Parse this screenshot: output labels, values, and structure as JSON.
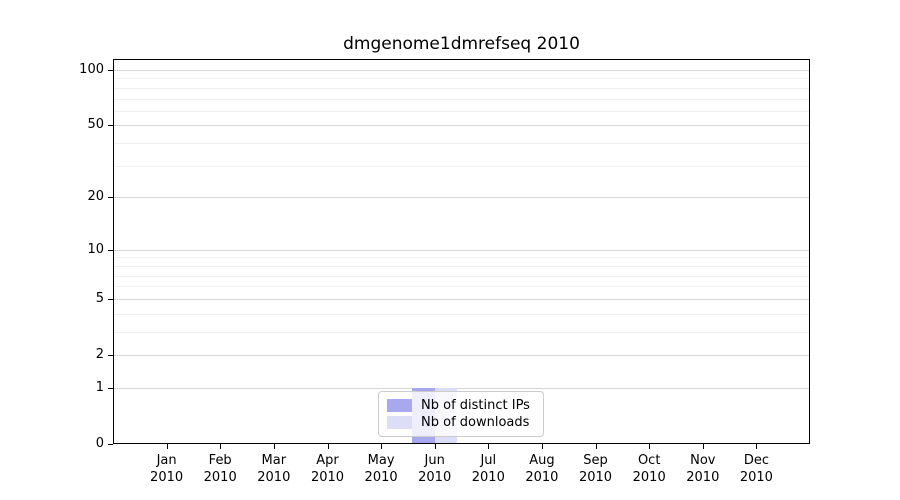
{
  "chart_data": {
    "type": "bar",
    "title": "dmgenome1dmrefseq 2010",
    "year": "2010",
    "categories": [
      "Jan",
      "Feb",
      "Mar",
      "Apr",
      "May",
      "Jun",
      "Jul",
      "Aug",
      "Sep",
      "Oct",
      "Nov",
      "Dec"
    ],
    "series": [
      {
        "name": "Nb of distinct IPs",
        "color": "#a8a8ef",
        "values": [
          0,
          0,
          0,
          0,
          0,
          1,
          0,
          0,
          0,
          0,
          0,
          0
        ]
      },
      {
        "name": "Nb of downloads",
        "color": "#dcddf7",
        "values": [
          0,
          0,
          0,
          0,
          0,
          1,
          0,
          0,
          0,
          0,
          0,
          0
        ]
      }
    ],
    "y_axis": {
      "scale": "log1p",
      "min": 0,
      "max": 100,
      "ticks": [
        0,
        1,
        2,
        5,
        10,
        20,
        50,
        100
      ],
      "minor_ticks": [
        3,
        4,
        6,
        7,
        8,
        9,
        30,
        40,
        60,
        70,
        80,
        90
      ]
    },
    "x_axis": {
      "tick_count": 12
    },
    "legend": {
      "position": "lower center",
      "entries": [
        "Nb of distinct IPs",
        "Nb of downloads"
      ]
    },
    "grid": true,
    "colors": {
      "major_gridline": "#d6d6d6",
      "minor_gridline": "#f0f0f0",
      "spine": "#000000",
      "legend_border": "#cccccc"
    }
  }
}
